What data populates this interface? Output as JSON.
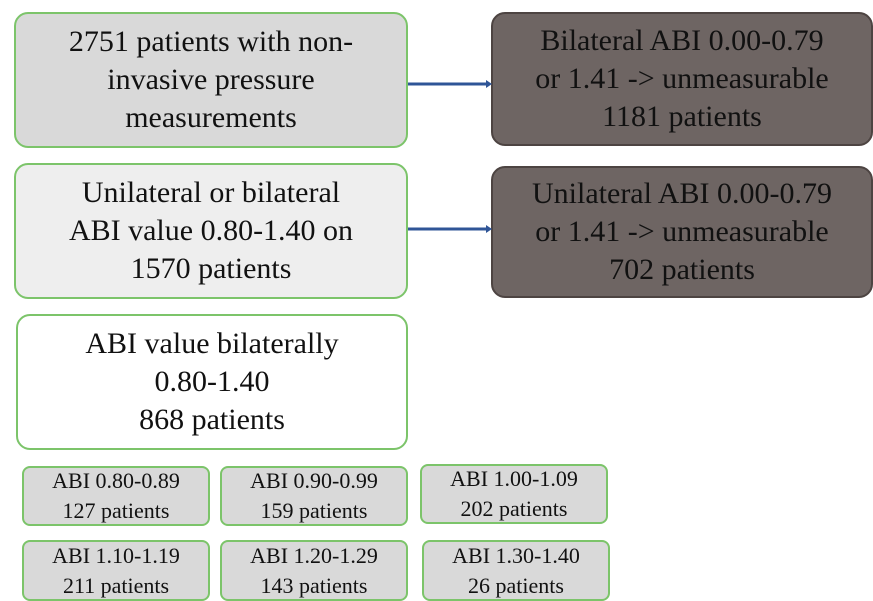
{
  "nodes": [
    {
      "lines": [
        "2751 patients with non-",
        "invasive pressure",
        "measurements"
      ]
    },
    {
      "lines": [
        "Bilateral ABI 0.00-0.79",
        "or 1.41 -> unmeasurable",
        "1181 patients"
      ]
    },
    {
      "lines": [
        "Unilateral or bilateral",
        "ABI value 0.80-1.40 on",
        "1570 patients"
      ]
    },
    {
      "lines": [
        "Unilateral ABI 0.00-0.79",
        "or 1.41 -> unmeasurable",
        "702 patients"
      ]
    },
    {
      "lines": [
        "ABI value bilaterally",
        "0.80-1.40",
        "868 patients"
      ]
    }
  ],
  "groups": [
    {
      "lines": [
        "ABI 0.80-0.89",
        "127 patients"
      ]
    },
    {
      "lines": [
        "ABI 0.90-0.99",
        "159 patients"
      ]
    },
    {
      "lines": [
        "ABI 1.00-1.09",
        "202 patients"
      ]
    },
    {
      "lines": [
        "ABI 1.10-1.19",
        "211 patients"
      ]
    },
    {
      "lines": [
        "ABI 1.20-1.29",
        "143 patients"
      ]
    },
    {
      "lines": [
        "ABI 1.30-1.40",
        "26 patients"
      ]
    }
  ]
}
